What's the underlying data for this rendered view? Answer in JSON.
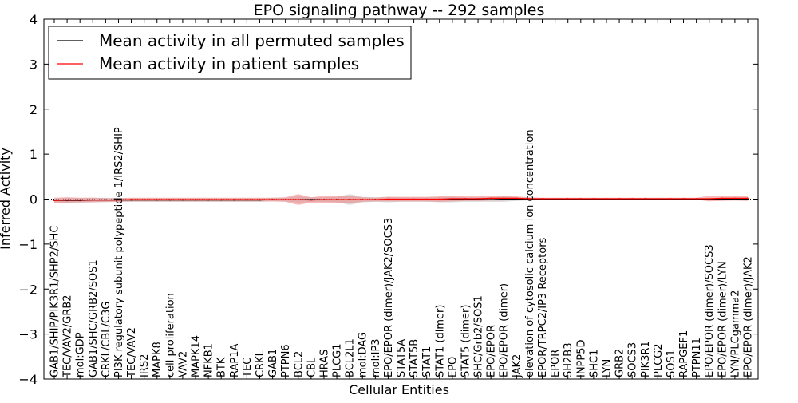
{
  "chart_data": {
    "type": "line",
    "title": "EPO signaling pathway -- 292 samples",
    "xlabel": "Cellular Entities",
    "ylabel": "Inferred Activity",
    "ylim": [
      -4,
      4
    ],
    "yticks": [
      "4",
      "3",
      "2",
      "1",
      "0",
      "−1",
      "−2",
      "−3",
      "−4"
    ],
    "legend": {
      "placement": "top-left",
      "entries": [
        {
          "label": "Mean activity in all permuted samples",
          "color": "#000000"
        },
        {
          "label": "Mean activity in patient samples",
          "color": "#ff0000"
        }
      ]
    },
    "band_colors": {
      "permuted": "#b0b0b0",
      "patient": "#f08080"
    },
    "categories": [
      "GAB1/SHIP/PIK3R1/SHP2/SHC",
      "TEC/VAV2/GRB2",
      "mol:GDP",
      "GAB1/SHC/GRB2/SOS1",
      "CRKL/CBL/C3G",
      "PI3K regulatory subunit polypeptide 1/IRS2/SHIP",
      "TEC/VAV2",
      "IRS2",
      "MAPK8",
      "cell proliferation",
      "VAV2",
      "MAPK14",
      "NFKB1",
      "BTK",
      "RAP1A",
      "TEC",
      "CRKL",
      "GAB1",
      "PTPN6",
      "BCL2",
      "CBL",
      "HRAS",
      "PLCG1",
      "BCL2L1",
      "mol:DAG",
      "mol:IP3",
      "EPO/EPOR (dimer)/JAK2/SOCS3",
      "STAT5A",
      "STAT5B",
      "STAT1",
      "STAT1 (dimer)",
      "EPO",
      "STAT5 (dimer)",
      "SHC/Grb2/SOS1",
      "EPO/EPOR",
      "EPO/EPOR (dimer)",
      "JAK2",
      "elevation of cytosolic calcium ion concentration",
      "EPOR/TRPC2/IP3 Receptors",
      "EPOR",
      "SH2B3",
      "INPP5D",
      "SHC1",
      "LYN",
      "GRB2",
      "SOCS3",
      "PIK3R1",
      "PLCG2",
      "SOS1",
      "RAPGEF1",
      "PTPN11",
      "EPO/EPOR (dimer)/SOCS3",
      "EPO/EPOR (dimer)/LYN",
      "LYN/PLCgamma2",
      "EPO/EPOR (dimer)/JAK2"
    ],
    "series": [
      {
        "name": "Mean activity in all permuted samples",
        "values": [
          -0.03,
          -0.03,
          -0.03,
          -0.02,
          -0.02,
          -0.02,
          -0.02,
          -0.02,
          -0.02,
          -0.02,
          -0.02,
          -0.02,
          -0.02,
          -0.02,
          -0.02,
          -0.02,
          -0.02,
          -0.01,
          -0.01,
          -0.01,
          -0.01,
          -0.01,
          -0.01,
          -0.01,
          -0.01,
          -0.01,
          -0.01,
          -0.01,
          -0.01,
          -0.01,
          -0.01,
          -0.01,
          -0.01,
          -0.01,
          -0.01,
          0.0,
          0.0,
          0.0,
          0.0,
          0.0,
          0.0,
          0.0,
          0.0,
          0.0,
          0.0,
          0.0,
          0.0,
          0.0,
          0.0,
          0.0,
          0.0,
          0.0,
          0.0,
          0.0,
          0.0
        ],
        "band": [
          0.04,
          0.06,
          0.05,
          0.05,
          0.05,
          0.04,
          0.04,
          0.04,
          0.04,
          0.04,
          0.04,
          0.04,
          0.04,
          0.04,
          0.04,
          0.04,
          0.04,
          0.04,
          0.04,
          0.07,
          0.05,
          0.05,
          0.06,
          0.12,
          0.06,
          0.05,
          0.06,
          0.05,
          0.05,
          0.05,
          0.06,
          0.06,
          0.05,
          0.05,
          0.05,
          0.06,
          0.04,
          0.03,
          0.02,
          0.02,
          0.02,
          0.02,
          0.02,
          0.02,
          0.02,
          0.02,
          0.02,
          0.02,
          0.02,
          0.02,
          0.02,
          0.02,
          0.02,
          0.03,
          0.03
        ]
      },
      {
        "name": "Mean activity in patient samples",
        "values": [
          -0.03,
          -0.02,
          -0.02,
          -0.02,
          -0.02,
          -0.02,
          -0.01,
          -0.01,
          -0.01,
          -0.01,
          -0.01,
          -0.01,
          -0.01,
          -0.01,
          -0.01,
          -0.01,
          -0.01,
          -0.01,
          -0.01,
          -0.01,
          -0.02,
          -0.01,
          -0.01,
          -0.01,
          -0.01,
          -0.01,
          0.0,
          0.0,
          0.0,
          0.0,
          0.0,
          0.01,
          0.01,
          0.01,
          0.02,
          0.02,
          0.02,
          0.01,
          0.01,
          0.01,
          0.01,
          0.01,
          0.01,
          0.01,
          0.01,
          0.01,
          0.01,
          0.01,
          0.01,
          0.01,
          0.01,
          0.01,
          0.02,
          0.02,
          0.02
        ],
        "band": [
          0.06,
          0.06,
          0.05,
          0.05,
          0.04,
          0.04,
          0.04,
          0.04,
          0.04,
          0.04,
          0.04,
          0.04,
          0.04,
          0.04,
          0.04,
          0.04,
          0.04,
          0.04,
          0.05,
          0.12,
          0.06,
          0.08,
          0.07,
          0.08,
          0.05,
          0.04,
          0.05,
          0.05,
          0.05,
          0.05,
          0.06,
          0.06,
          0.05,
          0.05,
          0.05,
          0.05,
          0.04,
          0.03,
          0.02,
          0.02,
          0.02,
          0.02,
          0.02,
          0.02,
          0.02,
          0.02,
          0.02,
          0.02,
          0.02,
          0.02,
          0.02,
          0.06,
          0.06,
          0.05,
          0.06
        ]
      }
    ]
  }
}
